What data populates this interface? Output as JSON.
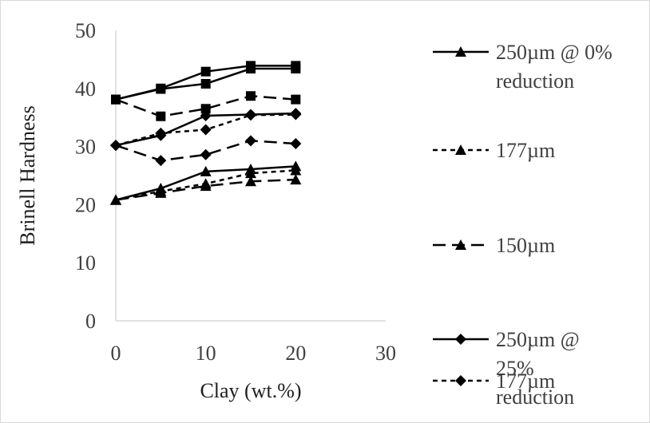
{
  "chart_data": {
    "type": "line",
    "title": "",
    "xlabel": "Clay (wt.%)",
    "ylabel": "Brinell  Hardness",
    "xlim": [
      0,
      30
    ],
    "ylim": [
      0,
      50
    ],
    "x_ticks": [
      "0",
      "10",
      "20",
      "30"
    ],
    "y_ticks": [
      "0",
      "10",
      "20",
      "30",
      "40",
      "50"
    ],
    "grid": false,
    "legend_position": "right",
    "colors": {
      "series": "#000000",
      "text": "#404040",
      "axis": "#d9d9d9",
      "frame": "#d9d9d9"
    },
    "x": [
      0,
      5,
      10,
      15,
      20
    ],
    "series": [
      {
        "name": "250µm @ 0% reduction",
        "values": [
          20.8,
          22.8,
          25.7,
          26.1,
          26.6
        ],
        "marker": "triangle",
        "dash": "solid"
      },
      {
        "name": "177µm",
        "values": [
          20.8,
          22.3,
          23.6,
          25.4,
          25.9
        ],
        "marker": "triangle",
        "dash": "short-dash"
      },
      {
        "name": "150µm",
        "values": [
          20.8,
          22.0,
          23.2,
          24.0,
          24.3
        ],
        "marker": "triangle",
        "dash": "long-dash"
      },
      {
        "name": "250µm @ 25% reduction",
        "values": [
          30.2,
          31.9,
          35.3,
          35.5,
          35.7
        ],
        "marker": "diamond",
        "dash": "solid"
      },
      {
        "name": "177µm",
        "values": [
          30.2,
          32.3,
          32.9,
          35.4,
          35.5
        ],
        "marker": "diamond",
        "dash": "short-dash"
      },
      {
        "name": "",
        "values": [
          30.2,
          27.6,
          28.6,
          31.0,
          30.5
        ],
        "marker": "diamond",
        "dash": "long-dash"
      },
      {
        "name": "",
        "values": [
          38.1,
          40.0,
          42.9,
          43.9,
          43.9
        ],
        "marker": "square",
        "dash": "solid"
      },
      {
        "name": "",
        "values": [
          38.1,
          39.9,
          40.8,
          43.4,
          43.4
        ],
        "marker": "square",
        "dash": "solid"
      },
      {
        "name": "",
        "values": [
          38.1,
          35.2,
          36.5,
          38.7,
          38.1
        ],
        "marker": "square",
        "dash": "long-dash"
      }
    ],
    "legend_entries": [
      {
        "lines": [
          "250µm @ 0%",
          "reduction"
        ],
        "marker": "triangle",
        "dash": "solid"
      },
      {
        "lines": [
          "177µm"
        ],
        "marker": "triangle",
        "dash": "short-dash"
      },
      {
        "lines": [
          "150µm"
        ],
        "marker": "triangle",
        "dash": "long-dash"
      },
      {
        "lines": [
          "250µm @",
          "25%",
          "reduction"
        ],
        "marker": "diamond",
        "dash": "solid"
      },
      {
        "lines": [
          "177µm"
        ],
        "marker": "diamond",
        "dash": "short-dash"
      }
    ]
  }
}
